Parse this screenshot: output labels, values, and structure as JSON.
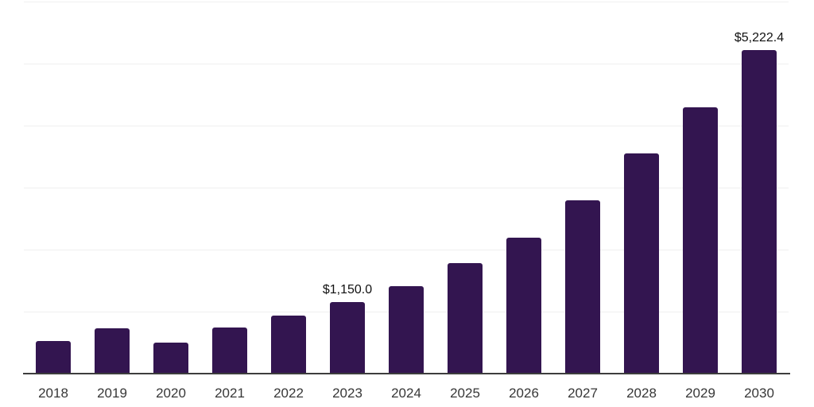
{
  "chart_data": {
    "type": "bar",
    "title": "",
    "xlabel": "",
    "ylabel": "",
    "categories": [
      "2018",
      "2019",
      "2020",
      "2021",
      "2022",
      "2023",
      "2024",
      "2025",
      "2026",
      "2027",
      "2028",
      "2029",
      "2030"
    ],
    "values": [
      520,
      730,
      505,
      745,
      930,
      1150.0,
      1415,
      1780,
      2190,
      2800,
      3555,
      4295,
      5222.4
    ],
    "data_labels": [
      {
        "category": "2023",
        "text": "$1,150.0"
      },
      {
        "category": "2030",
        "text": "$5,222.4"
      }
    ],
    "ylim": [
      0,
      6000
    ],
    "gridline_values": [
      1000,
      2000,
      3000,
      4000,
      5000,
      6000
    ],
    "grid": "horizontal-only",
    "y_axis_tick_labels": "none",
    "legend": "none",
    "colors": {
      "bar": "#331550",
      "axis_line": "#3d3d3d",
      "gridline": "#f0f0f0",
      "tick_label": "#373737",
      "data_label": "#111111",
      "background": "#ffffff"
    }
  }
}
